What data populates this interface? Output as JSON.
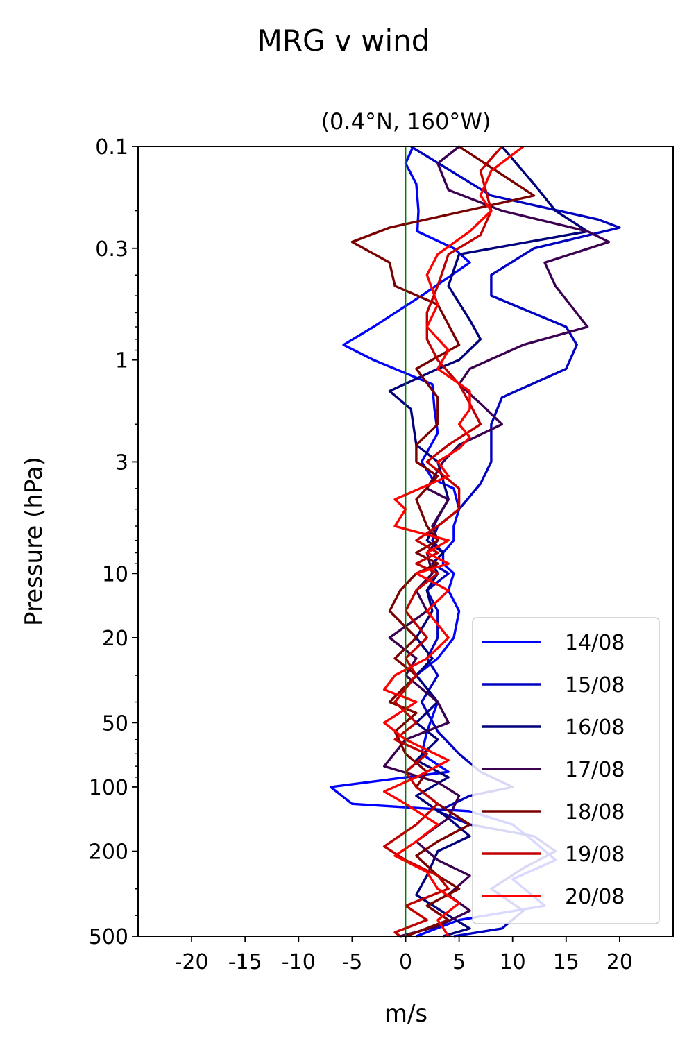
{
  "chart_data": {
    "type": "line",
    "title": "MRG v wind",
    "subtitle": "(0.4°N, 160°W)",
    "xlabel": "m/s",
    "ylabel": "Pressure (hPa)",
    "xlim": [
      -25,
      25
    ],
    "ylim": [
      500,
      0.1
    ],
    "yscale": "log",
    "x_ticks": [
      -20,
      -15,
      -10,
      -5,
      0,
      5,
      10,
      15,
      20
    ],
    "x_tick_labels": [
      "-20",
      "-15",
      "-10",
      "-5",
      "0",
      "5",
      "10",
      "15",
      "20"
    ],
    "y_ticks": [
      0.1,
      0.3,
      1,
      3,
      10,
      20,
      50,
      100,
      200,
      500
    ],
    "y_tick_labels": [
      "0.1",
      "0.3",
      "1",
      "3",
      "10",
      "20",
      "50",
      "100",
      "200",
      "500"
    ],
    "reference_line": {
      "x": 0,
      "color": "#007a00"
    },
    "legend_position": "lower-right",
    "series": [
      {
        "name": "14/08",
        "color": "#0000ff",
        "points": [
          [
            0.7,
            0.1
          ],
          [
            0,
            0.12
          ],
          [
            1,
            0.15
          ],
          [
            1.2,
            0.2
          ],
          [
            1.1,
            0.25
          ],
          [
            4.5,
            0.3
          ],
          [
            6,
            0.35
          ],
          [
            1.5,
            0.5
          ],
          [
            -3,
            0.7
          ],
          [
            -5.8,
            0.85
          ],
          [
            -3,
            1
          ],
          [
            2.5,
            1.3
          ],
          [
            2.7,
            1.7
          ],
          [
            3,
            2.2
          ],
          [
            1.5,
            3
          ],
          [
            2.5,
            3.6
          ],
          [
            4.5,
            4
          ],
          [
            5,
            5
          ],
          [
            4.5,
            6
          ],
          [
            4.5,
            7
          ],
          [
            3.5,
            8
          ],
          [
            3.5,
            9
          ],
          [
            4.5,
            10
          ],
          [
            4,
            12
          ],
          [
            5,
            15
          ],
          [
            4.5,
            20
          ],
          [
            3,
            25
          ],
          [
            1,
            30
          ],
          [
            3,
            40
          ],
          [
            2,
            55
          ],
          [
            1.5,
            70
          ],
          [
            4,
            85
          ],
          [
            -7,
            100
          ],
          [
            -5,
            120
          ],
          [
            6,
            130
          ],
          [
            10,
            150
          ],
          [
            12,
            180
          ],
          [
            14,
            220
          ],
          [
            10,
            270
          ],
          [
            13,
            360
          ],
          [
            5,
            420
          ],
          [
            1,
            500
          ]
        ]
      },
      {
        "name": "15/08",
        "color": "#0000c0",
        "points": [
          [
            0.5,
            0.1
          ],
          [
            8,
            0.17
          ],
          [
            18,
            0.22
          ],
          [
            20,
            0.24
          ],
          [
            12,
            0.3
          ],
          [
            8,
            0.4
          ],
          [
            8,
            0.5
          ],
          [
            15,
            0.7
          ],
          [
            16,
            0.85
          ],
          [
            15,
            1.1
          ],
          [
            9,
            1.5
          ],
          [
            8,
            2
          ],
          [
            8,
            3
          ],
          [
            7,
            3.8
          ],
          [
            5,
            5
          ],
          [
            3,
            6
          ],
          [
            2.5,
            7
          ],
          [
            3.5,
            8
          ],
          [
            2.5,
            9
          ],
          [
            4,
            10
          ],
          [
            2,
            12
          ],
          [
            3,
            15
          ],
          [
            3,
            20
          ],
          [
            2,
            25
          ],
          [
            3,
            30
          ],
          [
            1.5,
            40
          ],
          [
            3,
            55
          ],
          [
            5,
            70
          ],
          [
            7,
            85
          ],
          [
            10,
            100
          ],
          [
            6,
            110
          ],
          [
            3,
            130
          ],
          [
            6,
            150
          ],
          [
            12,
            170
          ],
          [
            14,
            200
          ],
          [
            11,
            240
          ],
          [
            8,
            300
          ],
          [
            11,
            380
          ],
          [
            9,
            460
          ],
          [
            4.5,
            500
          ]
        ]
      },
      {
        "name": "16/08",
        "color": "#00007a",
        "points": [
          [
            9,
            0.1
          ],
          [
            12,
            0.15
          ],
          [
            14,
            0.2
          ],
          [
            17,
            0.25
          ],
          [
            5,
            0.32
          ],
          [
            4,
            0.45
          ],
          [
            6,
            0.65
          ],
          [
            7,
            0.8
          ],
          [
            5,
            1
          ],
          [
            3,
            1.1
          ],
          [
            -1.5,
            1.4
          ],
          [
            0.5,
            1.7
          ],
          [
            1,
            2.5
          ],
          [
            3,
            3
          ],
          [
            4,
            4.5
          ],
          [
            3,
            5.5
          ],
          [
            2,
            7
          ],
          [
            3.5,
            8
          ],
          [
            2.5,
            9
          ],
          [
            3,
            10
          ],
          [
            2,
            12
          ],
          [
            2.5,
            15
          ],
          [
            1,
            20
          ],
          [
            2.5,
            25
          ],
          [
            1,
            30
          ],
          [
            3,
            40
          ],
          [
            1,
            50
          ],
          [
            3,
            60
          ],
          [
            1,
            75
          ],
          [
            4,
            90
          ],
          [
            1,
            110
          ],
          [
            4,
            140
          ],
          [
            6,
            170
          ],
          [
            3,
            200
          ],
          [
            2,
            260
          ],
          [
            1,
            320
          ],
          [
            4,
            400
          ],
          [
            6,
            460
          ],
          [
            3.5,
            500
          ]
        ]
      },
      {
        "name": "17/08",
        "color": "#3c0050",
        "points": [
          [
            5,
            0.1
          ],
          [
            3,
            0.12
          ],
          [
            4,
            0.16
          ],
          [
            9,
            0.2
          ],
          [
            17,
            0.25
          ],
          [
            19,
            0.28
          ],
          [
            13,
            0.35
          ],
          [
            14,
            0.45
          ],
          [
            17,
            0.7
          ],
          [
            11,
            0.85
          ],
          [
            6,
            1.1
          ],
          [
            5,
            1.3
          ],
          [
            7,
            1.6
          ],
          [
            9,
            2
          ],
          [
            5,
            2.5
          ],
          [
            3.5,
            3
          ],
          [
            2,
            4
          ],
          [
            4,
            4.5
          ],
          [
            2.5,
            6
          ],
          [
            3,
            7
          ],
          [
            2,
            8
          ],
          [
            2.5,
            10
          ],
          [
            1,
            12
          ],
          [
            2,
            15
          ],
          [
            -1.5,
            20
          ],
          [
            1,
            25
          ],
          [
            0,
            30
          ],
          [
            3,
            40
          ],
          [
            4,
            50
          ],
          [
            0,
            60
          ],
          [
            -2,
            80
          ],
          [
            3,
            95
          ],
          [
            5,
            110
          ],
          [
            4,
            140
          ],
          [
            1,
            180
          ],
          [
            3,
            220
          ],
          [
            6,
            260
          ],
          [
            4,
            320
          ],
          [
            6,
            380
          ],
          [
            3,
            450
          ],
          [
            -0.5,
            500
          ]
        ]
      },
      {
        "name": "18/08",
        "color": "#7a0000",
        "points": [
          [
            5,
            0.1
          ],
          [
            12,
            0.17
          ],
          [
            -1.5,
            0.24
          ],
          [
            -5,
            0.28
          ],
          [
            -1.5,
            0.35
          ],
          [
            -1,
            0.45
          ],
          [
            3,
            0.55
          ],
          [
            5,
            0.85
          ],
          [
            1,
            1.1
          ],
          [
            3,
            1.5
          ],
          [
            3,
            2
          ],
          [
            1,
            2.5
          ],
          [
            1,
            3
          ],
          [
            3,
            3.5
          ],
          [
            1,
            4.5
          ],
          [
            2,
            6
          ],
          [
            3,
            7
          ],
          [
            1,
            8
          ],
          [
            3,
            9
          ],
          [
            1,
            10
          ],
          [
            -0.5,
            12
          ],
          [
            -1.5,
            15
          ],
          [
            1,
            20
          ],
          [
            -1,
            25
          ],
          [
            1,
            30
          ],
          [
            -1.5,
            40
          ],
          [
            1,
            45
          ],
          [
            -1,
            55
          ],
          [
            0,
            70
          ],
          [
            2,
            85
          ],
          [
            1,
            100
          ],
          [
            3,
            120
          ],
          [
            6,
            150
          ],
          [
            3,
            180
          ],
          [
            1,
            210
          ],
          [
            3,
            260
          ],
          [
            5,
            300
          ],
          [
            2,
            360
          ],
          [
            4,
            420
          ],
          [
            1,
            480
          ],
          [
            0,
            500
          ]
        ]
      },
      {
        "name": "19/08",
        "color": "#c00000",
        "points": [
          [
            9,
            0.1
          ],
          [
            7,
            0.13
          ],
          [
            8,
            0.2
          ],
          [
            7,
            0.26
          ],
          [
            4,
            0.32
          ],
          [
            3,
            0.45
          ],
          [
            2,
            0.6
          ],
          [
            2,
            0.8
          ],
          [
            3,
            1
          ],
          [
            5,
            1.3
          ],
          [
            6,
            1.6
          ],
          [
            7,
            2
          ],
          [
            4,
            2.5
          ],
          [
            2,
            3
          ],
          [
            5,
            4
          ],
          [
            5,
            5
          ],
          [
            3,
            6
          ],
          [
            1,
            7
          ],
          [
            3,
            8
          ],
          [
            1,
            9
          ],
          [
            3,
            10
          ],
          [
            1,
            12
          ],
          [
            0,
            15
          ],
          [
            2,
            20
          ],
          [
            0,
            25
          ],
          [
            1,
            30
          ],
          [
            -1,
            40
          ],
          [
            1,
            50
          ],
          [
            -1,
            60
          ],
          [
            2,
            70
          ],
          [
            0,
            85
          ],
          [
            1,
            100
          ],
          [
            3,
            120
          ],
          [
            1,
            150
          ],
          [
            -2,
            190
          ],
          [
            0,
            220
          ],
          [
            3,
            260
          ],
          [
            4,
            300
          ],
          [
            0,
            360
          ],
          [
            2,
            420
          ],
          [
            -1,
            480
          ],
          [
            -0.5,
            500
          ]
        ]
      },
      {
        "name": "20/08",
        "color": "#ff0000",
        "points": [
          [
            11,
            0.1
          ],
          [
            8,
            0.13
          ],
          [
            7,
            0.17
          ],
          [
            8,
            0.2
          ],
          [
            6,
            0.25
          ],
          [
            3,
            0.32
          ],
          [
            2,
            0.4
          ],
          [
            3,
            0.55
          ],
          [
            2,
            0.7
          ],
          [
            4,
            0.9
          ],
          [
            3,
            1.1
          ],
          [
            6,
            1.4
          ],
          [
            6,
            1.7
          ],
          [
            5,
            2
          ],
          [
            6,
            2.3
          ],
          [
            5,
            2.6
          ],
          [
            3,
            3
          ],
          [
            4,
            3.5
          ],
          [
            -1,
            4.5
          ],
          [
            0,
            5
          ],
          [
            -1,
            6
          ],
          [
            4,
            7
          ],
          [
            2,
            8
          ],
          [
            4,
            9
          ],
          [
            1,
            10
          ],
          [
            4,
            12
          ],
          [
            2,
            15
          ],
          [
            4,
            20
          ],
          [
            2,
            25
          ],
          [
            -1,
            30
          ],
          [
            -2,
            35
          ],
          [
            1,
            40
          ],
          [
            -2,
            50
          ],
          [
            0,
            60
          ],
          [
            4,
            75
          ],
          [
            1,
            90
          ],
          [
            -2,
            105
          ],
          [
            0,
            120
          ],
          [
            3,
            150
          ],
          [
            1,
            180
          ],
          [
            -1,
            210
          ],
          [
            2,
            250
          ],
          [
            3,
            300
          ],
          [
            5,
            350
          ],
          [
            3,
            420
          ],
          [
            4,
            500
          ]
        ]
      }
    ]
  }
}
